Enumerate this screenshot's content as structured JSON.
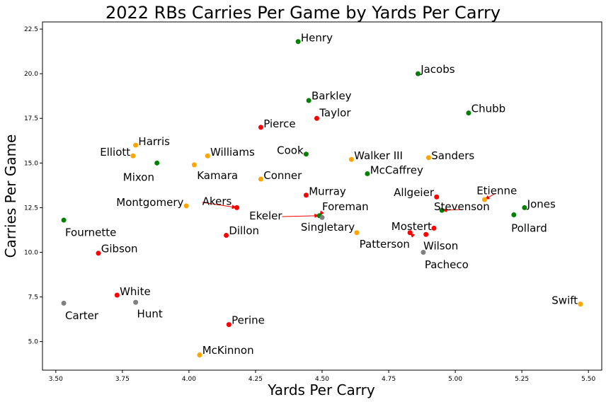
{
  "chart_data": {
    "type": "scatter",
    "title": "2022 RBs Carries Per Game by Yards Per Carry",
    "xlabel": "Yards Per Carry",
    "ylabel": "Carries Per Game",
    "xlim": [
      3.45,
      5.55
    ],
    "ylim": [
      3.4,
      22.9
    ],
    "xticks": [
      3.5,
      3.75,
      4.0,
      4.25,
      4.5,
      4.75,
      5.0,
      5.25,
      5.5
    ],
    "yticks": [
      5.0,
      7.5,
      10.0,
      12.5,
      15.0,
      17.5,
      20.0,
      22.5
    ],
    "grid": false,
    "colors": {
      "green": "#008000",
      "red": "#ff0000",
      "orange": "#ffa500",
      "gray": "#808080"
    },
    "points": [
      {
        "name": "Henry",
        "x": 4.41,
        "y": 21.8,
        "color": "green"
      },
      {
        "name": "Jacobs",
        "x": 4.86,
        "y": 20.0,
        "color": "green"
      },
      {
        "name": "Barkley",
        "x": 4.45,
        "y": 18.5,
        "color": "green"
      },
      {
        "name": "Chubb",
        "x": 5.05,
        "y": 17.8,
        "color": "green"
      },
      {
        "name": "Taylor",
        "x": 4.48,
        "y": 17.5,
        "color": "red"
      },
      {
        "name": "Pierce",
        "x": 4.27,
        "y": 17.0,
        "color": "red"
      },
      {
        "name": "Harris",
        "x": 3.8,
        "y": 16.0,
        "color": "orange"
      },
      {
        "name": "Williams",
        "x": 4.07,
        "y": 15.4,
        "color": "orange"
      },
      {
        "name": "Elliott",
        "x": 3.79,
        "y": 15.4,
        "color": "orange"
      },
      {
        "name": "Cook",
        "x": 4.44,
        "y": 15.5,
        "color": "green"
      },
      {
        "name": "Walker III",
        "x": 4.61,
        "y": 15.2,
        "color": "orange"
      },
      {
        "name": "Sanders",
        "x": 4.9,
        "y": 15.3,
        "color": "orange"
      },
      {
        "name": "Mixon",
        "x": 3.88,
        "y": 15.0,
        "color": "green"
      },
      {
        "name": "Kamara",
        "x": 4.02,
        "y": 14.9,
        "color": "orange"
      },
      {
        "name": "McCaffrey",
        "x": 4.67,
        "y": 14.4,
        "color": "green"
      },
      {
        "name": "Conner",
        "x": 4.27,
        "y": 14.1,
        "color": "orange"
      },
      {
        "name": "Murray",
        "x": 4.44,
        "y": 13.2,
        "color": "red"
      },
      {
        "name": "Allgeier",
        "x": 4.93,
        "y": 13.1,
        "color": "red"
      },
      {
        "name": "Etienne",
        "x": 5.11,
        "y": 12.95,
        "color": "orange"
      },
      {
        "name": "Montgomery",
        "x": 3.99,
        "y": 12.6,
        "color": "orange"
      },
      {
        "name": "Akers",
        "x": 4.18,
        "y": 12.5,
        "color": "red"
      },
      {
        "name": "Jones",
        "x": 5.26,
        "y": 12.5,
        "color": "green"
      },
      {
        "name": "Stevenson",
        "x": 4.95,
        "y": 12.35,
        "color": "green"
      },
      {
        "name": "Pollard",
        "x": 5.22,
        "y": 12.1,
        "color": "green"
      },
      {
        "name": "Foreman",
        "x": 4.49,
        "y": 12.05,
        "color": "green"
      },
      {
        "name": "Ekeler",
        "x": 4.5,
        "y": 11.95,
        "color": "gray"
      },
      {
        "name": "Fournette",
        "x": 3.53,
        "y": 11.8,
        "color": "green"
      },
      {
        "name": "Singletary",
        "x": 4.63,
        "y": 11.1,
        "color": "orange"
      },
      {
        "name": "Mostert",
        "x": 4.83,
        "y": 11.1,
        "color": "red"
      },
      {
        "name": "Wilson",
        "x": 4.89,
        "y": 11.0,
        "color": "red"
      },
      {
        "name": "Dillon",
        "x": 4.14,
        "y": 10.95,
        "color": "red"
      },
      {
        "name": "Patterson",
        "x": 4.92,
        "y": 11.35,
        "color": "red"
      },
      {
        "name": "Gibson",
        "x": 3.66,
        "y": 9.95,
        "color": "red"
      },
      {
        "name": "Pacheco",
        "x": 4.88,
        "y": 10.0,
        "color": "gray"
      },
      {
        "name": "White",
        "x": 3.73,
        "y": 7.6,
        "color": "red"
      },
      {
        "name": "Swift",
        "x": 5.47,
        "y": 7.1,
        "color": "orange"
      },
      {
        "name": "Hunt",
        "x": 3.8,
        "y": 7.2,
        "color": "gray"
      },
      {
        "name": "Carter",
        "x": 3.53,
        "y": 7.15,
        "color": "gray"
      },
      {
        "name": "Perine",
        "x": 4.15,
        "y": 5.95,
        "color": "red"
      },
      {
        "name": "McKinnon",
        "x": 4.04,
        "y": 4.25,
        "color": "orange"
      }
    ],
    "labels": [
      {
        "text": "Henry",
        "x": 4.42,
        "y": 22.0,
        "ha": "left"
      },
      {
        "text": "Jacobs",
        "x": 4.87,
        "y": 20.25,
        "ha": "left"
      },
      {
        "text": "Barkley",
        "x": 4.46,
        "y": 18.75,
        "ha": "left"
      },
      {
        "text": "Chubb",
        "x": 5.06,
        "y": 18.05,
        "ha": "left"
      },
      {
        "text": "Taylor",
        "x": 4.49,
        "y": 17.8,
        "ha": "left"
      },
      {
        "text": "Pierce",
        "x": 4.28,
        "y": 17.2,
        "ha": "left"
      },
      {
        "text": "Harris",
        "x": 3.81,
        "y": 16.2,
        "ha": "left"
      },
      {
        "text": "Williams",
        "x": 4.08,
        "y": 15.6,
        "ha": "left"
      },
      {
        "text": "Elliott",
        "x": 3.78,
        "y": 15.6,
        "ha": "right"
      },
      {
        "text": "Cook",
        "x": 4.43,
        "y": 15.7,
        "ha": "right"
      },
      {
        "text": "Walker III",
        "x": 4.62,
        "y": 15.4,
        "ha": "left"
      },
      {
        "text": "Sanders",
        "x": 4.91,
        "y": 15.4,
        "ha": "left"
      },
      {
        "text": "Mixon",
        "x": 3.87,
        "y": 14.2,
        "ha": "right"
      },
      {
        "text": "Kamara",
        "x": 4.03,
        "y": 14.3,
        "ha": "left"
      },
      {
        "text": "McCaffrey",
        "x": 4.68,
        "y": 14.6,
        "ha": "left"
      },
      {
        "text": "Conner",
        "x": 4.28,
        "y": 14.3,
        "ha": "left"
      },
      {
        "text": "Murray",
        "x": 4.45,
        "y": 13.4,
        "ha": "left"
      },
      {
        "text": "Allgeier",
        "x": 4.92,
        "y": 13.35,
        "ha": "right"
      },
      {
        "text": "Etienne",
        "x": 5.08,
        "y": 13.45,
        "ha": "left"
      },
      {
        "text": "Montgomery",
        "x": 3.98,
        "y": 12.8,
        "ha": "right"
      },
      {
        "text": "Akers",
        "x": 4.05,
        "y": 12.85,
        "ha": "left"
      },
      {
        "text": "Jones",
        "x": 5.27,
        "y": 12.7,
        "ha": "left"
      },
      {
        "text": "Stevenson",
        "x": 4.92,
        "y": 12.55,
        "ha": "left"
      },
      {
        "text": "Pollard",
        "x": 5.21,
        "y": 11.35,
        "ha": "left"
      },
      {
        "text": "Foreman",
        "x": 4.5,
        "y": 12.55,
        "ha": "left"
      },
      {
        "text": "Ekeler",
        "x": 4.35,
        "y": 12.05,
        "ha": "right"
      },
      {
        "text": "Fournette",
        "x": 3.535,
        "y": 11.1,
        "ha": "left"
      },
      {
        "text": "Singletary",
        "x": 4.42,
        "y": 11.4,
        "ha": "left"
      },
      {
        "text": "Mostert",
        "x": 4.76,
        "y": 11.45,
        "ha": "left"
      },
      {
        "text": "Wilson",
        "x": 4.88,
        "y": 10.35,
        "ha": "left"
      },
      {
        "text": "Dillon",
        "x": 4.15,
        "y": 11.2,
        "ha": "left"
      },
      {
        "text": "Patterson",
        "x": 4.64,
        "y": 10.45,
        "ha": "left"
      },
      {
        "text": "Gibson",
        "x": 3.67,
        "y": 10.2,
        "ha": "left"
      },
      {
        "text": "Pacheco",
        "x": 4.885,
        "y": 9.3,
        "ha": "left"
      },
      {
        "text": "White",
        "x": 3.74,
        "y": 7.8,
        "ha": "left"
      },
      {
        "text": "Swift",
        "x": 5.46,
        "y": 7.3,
        "ha": "right"
      },
      {
        "text": "Hunt",
        "x": 3.805,
        "y": 6.55,
        "ha": "left"
      },
      {
        "text": "Carter",
        "x": 3.535,
        "y": 6.45,
        "ha": "left"
      },
      {
        "text": "Perine",
        "x": 4.16,
        "y": 6.2,
        "ha": "left"
      },
      {
        "text": "McKinnon",
        "x": 4.05,
        "y": 4.5,
        "ha": "left"
      }
    ],
    "arrows": [
      {
        "from": [
          4.05,
          12.8
        ],
        "to": [
          4.18,
          12.5
        ],
        "color": "red"
      },
      {
        "from": [
          4.35,
          12.0
        ],
        "to": [
          4.49,
          12.05
        ],
        "color": "red"
      },
      {
        "from": [
          4.5,
          12.25
        ],
        "to": [
          4.49,
          12.05
        ],
        "color": "red"
      },
      {
        "from": [
          4.84,
          10.95
        ],
        "to": [
          4.83,
          11.1
        ],
        "color": "red"
      },
      {
        "from": [
          5.03,
          12.4
        ],
        "to": [
          4.95,
          12.35
        ],
        "color": "red"
      },
      {
        "from": [
          5.15,
          13.3
        ],
        "to": [
          5.11,
          12.95
        ],
        "color": "red"
      }
    ]
  }
}
